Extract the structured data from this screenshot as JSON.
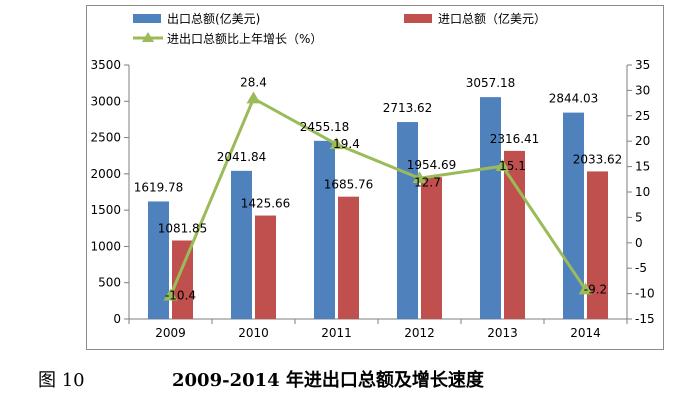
{
  "figure": {
    "label": "图 10",
    "title": "2009-2014 年进出口总额及增长速度"
  },
  "colors": {
    "export": "#4f81bd",
    "import": "#c0504d",
    "growth": "#9bbb59",
    "axis": "#7f7f7f"
  },
  "chart_data": {
    "type": "bar",
    "title": "2009-2014 年进出口总额及增长速度",
    "categories": [
      "2009",
      "2010",
      "2011",
      "2012",
      "2013",
      "2014"
    ],
    "ylim": [
      0,
      3500
    ],
    "yticks": [
      "0",
      "500",
      "1000",
      "1500",
      "2000",
      "2500",
      "3000",
      "3500"
    ],
    "y2lim": [
      -15,
      35
    ],
    "y2ticks": [
      "-15",
      "-10",
      "-5",
      "0",
      "5",
      "10",
      "15",
      "20",
      "25",
      "30",
      "35"
    ],
    "series": [
      {
        "name": "出口总额(亿美元)",
        "kind": "bar",
        "axis": "left",
        "values": [
          1619.78,
          2041.84,
          2455.18,
          2713.62,
          3057.18,
          2844.03
        ],
        "labels": [
          "1619.78",
          "2041.84",
          "2455.18",
          "2713.62",
          "3057.18",
          "2844.03"
        ]
      },
      {
        "name": "进口总额（亿美元）",
        "kind": "bar",
        "axis": "left",
        "values": [
          1081.85,
          1425.66,
          1685.76,
          1954.69,
          2316.41,
          2033.62
        ],
        "labels": [
          "1081.85",
          "1425.66",
          "1685.76",
          "1954.69",
          "2316.41",
          "2033.62"
        ]
      },
      {
        "name": "进出口总额比上年增长（%）",
        "kind": "line",
        "axis": "right",
        "values": [
          -10.4,
          28.4,
          19.4,
          12.7,
          15.1,
          -9.2
        ],
        "labels": [
          "-10.4",
          "28.4",
          "19.4",
          "12.7",
          "15.1",
          "-9.2"
        ]
      }
    ]
  }
}
